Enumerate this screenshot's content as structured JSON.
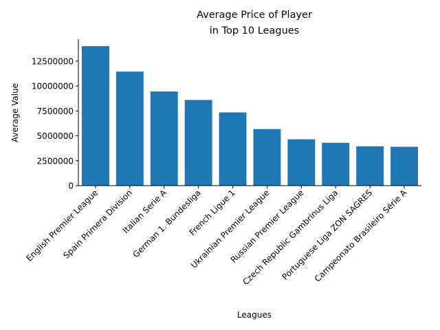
{
  "chart_data": {
    "type": "bar",
    "title_lines": [
      "Average Price of Player",
      "in Top 10 Leagues"
    ],
    "xlabel": "Leagues",
    "ylabel": "Average Value",
    "categories": [
      "English Premier League",
      "Spain Primera Division",
      "Italian Serie A",
      "German 1. Bundesliga",
      "French Ligue 1",
      "Ukrainian Premier League",
      "Russian Premier League",
      "Czech Republic Gambrinus Liga",
      "Portuguese Liga ZON SAGRES",
      "Campeonato Brasileiro Série A"
    ],
    "values": [
      14000000,
      11450000,
      9450000,
      8600000,
      7350000,
      5680000,
      4650000,
      4300000,
      3950000,
      3900000
    ],
    "yticks": [
      0,
      2500000,
      5000000,
      7500000,
      10000000,
      12500000
    ],
    "ytick_labels": [
      "0",
      "2500000",
      "5000000",
      "7500000",
      "10000000",
      "12500000"
    ],
    "ylim": [
      0,
      14700000
    ],
    "bar_color": "#1f77b4",
    "grid": false,
    "legend": false
  }
}
